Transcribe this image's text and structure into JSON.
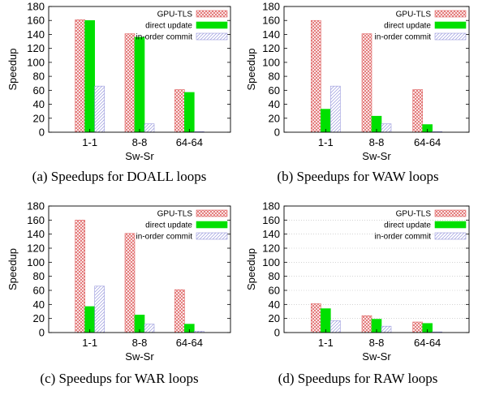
{
  "chart_data": [
    {
      "type": "bar",
      "caption": "(a) Speedups for DOALL loops",
      "xlabel": "Sw-Sr",
      "ylabel": "Speedup",
      "ylim": [
        0,
        180
      ],
      "yticks": [
        0,
        20,
        40,
        60,
        80,
        100,
        120,
        140,
        160,
        180
      ],
      "categories": [
        "1-1",
        "8-8",
        "64-64"
      ],
      "grid": false,
      "legend_position": "top-right",
      "series": [
        {
          "name": "GPU-TLS",
          "values": [
            161,
            141,
            61
          ]
        },
        {
          "name": "direct update",
          "values": [
            160,
            136,
            57
          ]
        },
        {
          "name": "in-order commit",
          "values": [
            66,
            12,
            1
          ]
        }
      ]
    },
    {
      "type": "bar",
      "caption": "(b) Speedups for WAW loops",
      "xlabel": "Sw-Sr",
      "ylabel": "Speedup",
      "ylim": [
        0,
        180
      ],
      "yticks": [
        0,
        20,
        40,
        60,
        80,
        100,
        120,
        140,
        160,
        180
      ],
      "categories": [
        "1-1",
        "8-8",
        "64-64"
      ],
      "grid": false,
      "legend_position": "top-right",
      "series": [
        {
          "name": "GPU-TLS",
          "values": [
            160,
            141,
            61
          ]
        },
        {
          "name": "direct update",
          "values": [
            33,
            23,
            11
          ]
        },
        {
          "name": "in-order commit",
          "values": [
            66,
            12,
            1
          ]
        }
      ]
    },
    {
      "type": "bar",
      "caption": "(c) Speedups for WAR loops",
      "xlabel": "Sw-Sr",
      "ylabel": "Speedup",
      "ylim": [
        0,
        180
      ],
      "yticks": [
        0,
        20,
        40,
        60,
        80,
        100,
        120,
        140,
        160,
        180
      ],
      "categories": [
        "1-1",
        "8-8",
        "64-64"
      ],
      "grid": false,
      "legend_position": "top-right",
      "series": [
        {
          "name": "GPU-TLS",
          "values": [
            160,
            141,
            61
          ]
        },
        {
          "name": "direct update",
          "values": [
            37,
            25,
            12
          ]
        },
        {
          "name": "in-order commit",
          "values": [
            66,
            12,
            2
          ]
        }
      ]
    },
    {
      "type": "bar",
      "caption": "(d) Speedups for RAW loops",
      "xlabel": "Sw-Sr",
      "ylabel": "Speedup",
      "ylim": [
        0,
        180
      ],
      "yticks": [
        0,
        20,
        40,
        60,
        80,
        100,
        120,
        140,
        160,
        180
      ],
      "categories": [
        "1-1",
        "8-8",
        "64-64"
      ],
      "grid": true,
      "legend_position": "top-right",
      "series": [
        {
          "name": "GPU-TLS",
          "values": [
            41,
            24,
            15
          ]
        },
        {
          "name": "direct update",
          "values": [
            34,
            19,
            13
          ]
        },
        {
          "name": "in-order commit",
          "values": [
            17,
            9,
            1
          ]
        }
      ]
    }
  ],
  "colors": {
    "gpu_tls": "#e06666",
    "direct_update": "#00e000",
    "in_order_commit": "#9999dd",
    "axis": "#000000",
    "grid": "#bbbbbb"
  }
}
